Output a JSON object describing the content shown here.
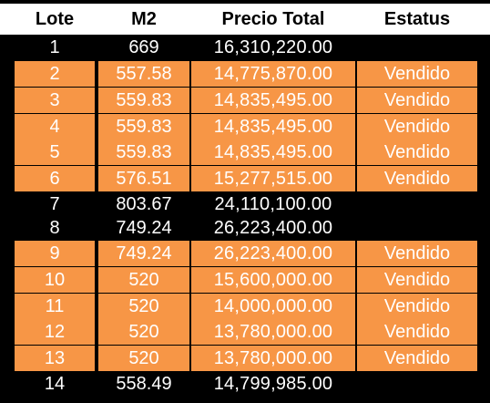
{
  "table": {
    "headers": [
      "Lote",
      "M2",
      "Precio Total",
      "Estatus"
    ],
    "rows": [
      {
        "lote": "1",
        "m2": "669",
        "precio": "16,310,220.00",
        "estatus": ""
      },
      {
        "lote": "2",
        "m2": "557.58",
        "precio": "14,775,870.00",
        "estatus": "Vendido"
      },
      {
        "lote": "3",
        "m2": "559.83",
        "precio": "14,835,495.00",
        "estatus": "Vendido"
      },
      {
        "lote": "4",
        "m2": "559.83",
        "precio": "14,835,495.00",
        "estatus": "Vendido"
      },
      {
        "lote": "5",
        "m2": "559.83",
        "precio": "14,835,495.00",
        "estatus": "Vendido"
      },
      {
        "lote": "6",
        "m2": "576.51",
        "precio": "15,277,515.00",
        "estatus": "Vendido"
      },
      {
        "lote": "7",
        "m2": "803.67",
        "precio": "24,110,100.00",
        "estatus": ""
      },
      {
        "lote": "8",
        "m2": "749.24",
        "precio": "26,223,400.00",
        "estatus": ""
      },
      {
        "lote": "9",
        "m2": "749.24",
        "precio": "26,223,400.00",
        "estatus": "Vendido"
      },
      {
        "lote": "10",
        "m2": "520",
        "precio": "15,600,000.00",
        "estatus": "Vendido"
      },
      {
        "lote": "11",
        "m2": "520",
        "precio": "14,000,000.00",
        "estatus": "Vendido"
      },
      {
        "lote": "12",
        "m2": "520",
        "precio": "13,780,000.00",
        "estatus": "Vendido"
      },
      {
        "lote": "13",
        "m2": "520",
        "precio": "13,780,000.00",
        "estatus": "Vendido"
      },
      {
        "lote": "14",
        "m2": "558.49",
        "precio": "14,799,985.00",
        "estatus": ""
      }
    ]
  },
  "colors": {
    "header_bg": "#ffffff",
    "sold_row": "#f79646",
    "background": "#000000",
    "text_light": "#ffffff"
  }
}
